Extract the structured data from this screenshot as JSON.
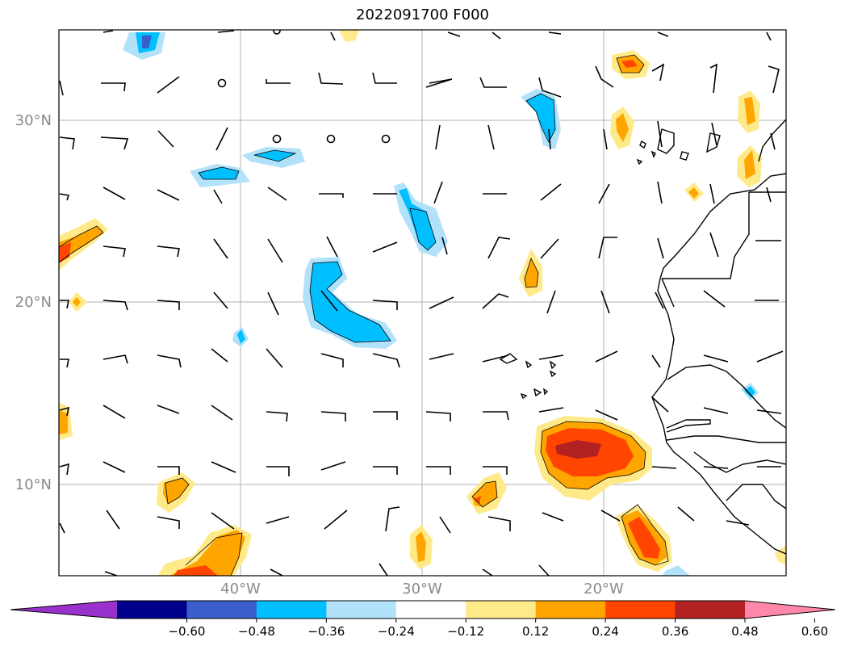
{
  "title": "2022091700 F000",
  "map": {
    "lat_ticks": [
      {
        "label": "30°N",
        "lat": 30
      },
      {
        "label": "20°N",
        "lat": 20
      },
      {
        "label": "10°N",
        "lat": 10
      }
    ],
    "lon_ticks": [
      {
        "label": "40°W",
        "lon": -40
      },
      {
        "label": "30°W",
        "lon": -30
      },
      {
        "label": "20°W",
        "lon": -20
      }
    ],
    "gridline_color": "#b0b0b0",
    "tick_label_color": "#8a8a8a"
  },
  "colorbar": {
    "colors": [
      "#9932cc",
      "#00008b",
      "#3a5fcd",
      "#00bfff",
      "#b2e2fa",
      "#ffffff",
      "#ffea8a",
      "#ffa500",
      "#ff4500",
      "#b22222",
      "#ff88aa"
    ],
    "tick_labels": [
      "−0.60",
      "−0.48",
      "−0.36",
      "−0.24",
      "−0.12",
      "0.12",
      "0.24",
      "0.36",
      "0.48",
      "0.60"
    ]
  }
}
